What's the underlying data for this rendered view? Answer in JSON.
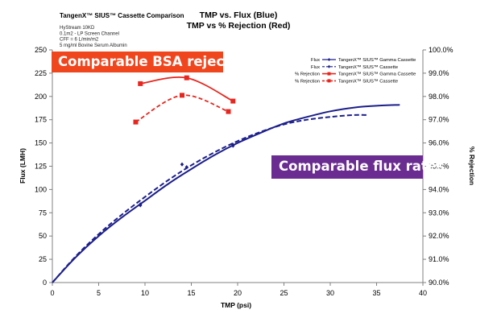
{
  "chart_data": {
    "type": "line",
    "subtitle_left": "TangenX™ SIUS™ Cassette Comparison",
    "notes": [
      "HyStream 10KD",
      "0.1m2 - LP Screen Channel",
      "CFF = 6 L/min/m2",
      "5 mg/ml Bovine Serum Albumin"
    ],
    "title_lines": [
      "TMP vs. Flux (Blue)",
      "TMP vs % Rejection (Red)"
    ],
    "xlabel": "TMP (psi)",
    "ylabel": "Flux (LMH)",
    "y2label": "% Rejection",
    "xlim": [
      0,
      40
    ],
    "ylim": [
      0,
      250
    ],
    "y2lim": [
      90.0,
      100.0
    ],
    "x_ticks": [
      "0",
      "5",
      "10",
      "15",
      "20",
      "25",
      "30",
      "35",
      "40"
    ],
    "y_ticks": [
      "0",
      "25",
      "50",
      "75",
      "100",
      "125",
      "150",
      "175",
      "200",
      "225",
      "250"
    ],
    "y2_ticks": [
      "90.0%",
      "91.0%",
      "92.0%",
      "93.0%",
      "94.0%",
      "95.0%",
      "96.0%",
      "97.0%",
      "98.0%",
      "99.0%",
      "100.0%"
    ],
    "grid": false,
    "legend_position": "top-right",
    "series": [
      {
        "legend_prefix": "Flux",
        "name": "TangenX™ SIUS™ Gamma Cassette",
        "axis": "left",
        "color": "#1c1f8a",
        "style": "solid",
        "marker": "diamond",
        "points": [
          [
            9.5,
            84
          ],
          [
            14.5,
            124
          ],
          [
            19.5,
            148
          ]
        ],
        "curve": [
          [
            0,
            0
          ],
          [
            2.5,
            27
          ],
          [
            5,
            50
          ],
          [
            7.5,
            70
          ],
          [
            10,
            88
          ],
          [
            12.5,
            106
          ],
          [
            15,
            122
          ],
          [
            17.5,
            137
          ],
          [
            20,
            150
          ],
          [
            22.5,
            161
          ],
          [
            25,
            171
          ],
          [
            27.5,
            178
          ],
          [
            30,
            184
          ],
          [
            32.5,
            188
          ],
          [
            35,
            190
          ],
          [
            37.5,
            191
          ]
        ]
      },
      {
        "legend_prefix": "Flux",
        "name": "TangenX™ SIUS™ Cassette",
        "axis": "left",
        "color": "#1c1f8a",
        "style": "dashed",
        "marker": "diamond",
        "points": [
          [
            9.5,
            83
          ],
          [
            14,
            127
          ],
          [
            19.5,
            147
          ]
        ],
        "curve": [
          [
            0,
            0
          ],
          [
            2.5,
            28
          ],
          [
            5,
            52
          ],
          [
            7.5,
            73
          ],
          [
            10,
            92
          ],
          [
            12.5,
            110
          ],
          [
            15,
            126
          ],
          [
            17.5,
            140
          ],
          [
            20,
            152
          ],
          [
            22.5,
            162
          ],
          [
            25,
            170
          ],
          [
            27.5,
            175
          ],
          [
            30,
            178
          ],
          [
            32.5,
            180
          ],
          [
            34,
            180
          ]
        ]
      },
      {
        "legend_prefix": "% Rejection",
        "name": "TangenX™ SIUS™ Gamma Cassette",
        "axis": "right",
        "color": "#e8261e",
        "style": "solid",
        "marker": "square",
        "points": [
          [
            9.5,
            98.55
          ],
          [
            14.5,
            98.8
          ],
          [
            19.5,
            97.8
          ]
        ]
      },
      {
        "legend_prefix": "% Rejection",
        "name": "TangenX™ SIUS™ Cassette",
        "axis": "right",
        "color": "#e8261e",
        "style": "dashed",
        "marker": "square",
        "points": [
          [
            9,
            96.9
          ],
          [
            14,
            98.05
          ],
          [
            19,
            97.35
          ]
        ]
      }
    ],
    "annotations": [
      "Comparable BSA rejection",
      "Comparable flux rates"
    ]
  },
  "colors": {
    "rejection_callout": "#f0461e",
    "flux_callout": "#6b2c91",
    "flux_series": "#1c1f8a",
    "rejection_series": "#e8261e"
  }
}
